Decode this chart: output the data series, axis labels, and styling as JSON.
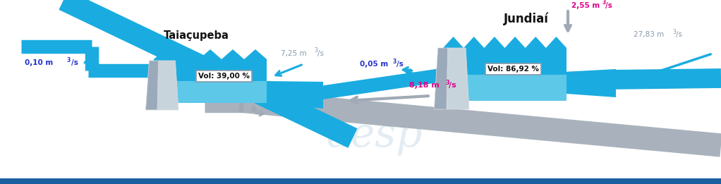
{
  "bg_color": "#ffffff",
  "canal_color": "#1aace0",
  "canal_light": "#5dc8e8",
  "gray_canal": "#a0aab5",
  "dam_light": "#c8d4dc",
  "dam_dark": "#9aaabb",
  "blue_text": "#2233cc",
  "magenta_text": "#dd0088",
  "gray_text": "#8899aa",
  "black_text": "#111111",
  "watermark_color": "#c8dae8",
  "bottom_bar": "#1a5fa0",
  "label_taiacupeba": "Taiaçupeba",
  "label_jundiai": "Jundiaí",
  "vol_tai": "Vol: 39,00 %",
  "vol_jun": "Vol: 86,92 %",
  "f010": "0,10 m",
  "f010sup": "3",
  "f010sub": "/s",
  "f725": "7,25 m",
  "f725sup": "3",
  "f725sub": "/s",
  "f005": "0,05 m",
  "f005sup": "3",
  "f005sub": "/s",
  "f818": "8,18 m",
  "f818sup": "3",
  "f818sub": "/s",
  "f255": "2,55 m",
  "f255sup": "3",
  "f255sub": "/s",
  "f2783": "27,83 m",
  "f2783sup": "3",
  "f2783sub": "/s",
  "watermark": "aesp"
}
